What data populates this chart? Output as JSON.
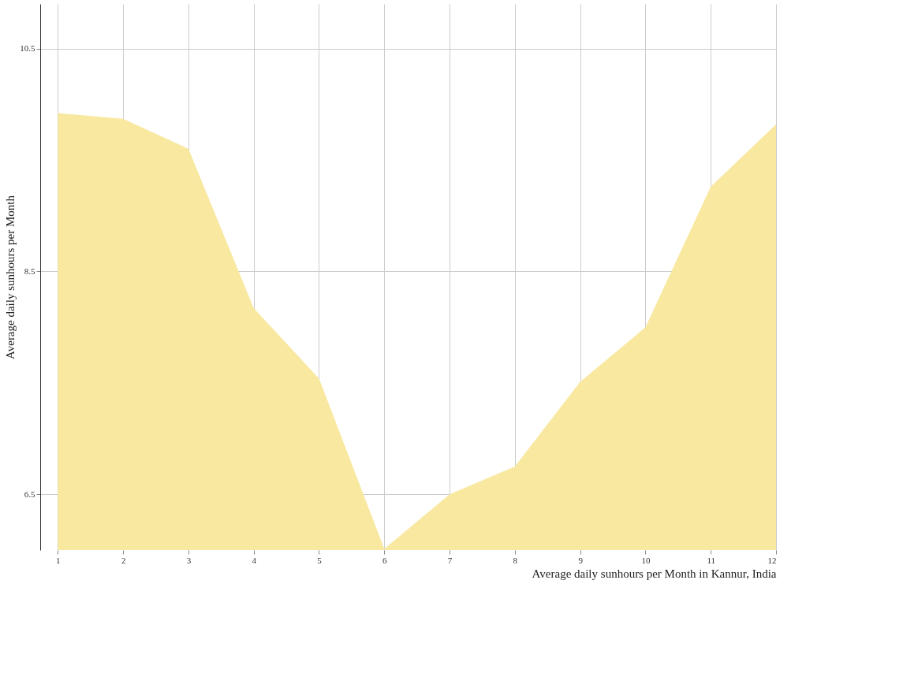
{
  "chart_data": {
    "type": "area",
    "xlabel": "Average daily sunhours per Month in Kannur, India",
    "ylabel": "Average daily sunhours per Month",
    "x": [
      1,
      2,
      3,
      4,
      5,
      6,
      7,
      8,
      9,
      10,
      11,
      12
    ],
    "series": [
      {
        "color": "#f8e8a0",
        "values": [
          9.92,
          9.87,
          9.6,
          8.17,
          7.54,
          6.01,
          6.5,
          6.75,
          7.51,
          8.0,
          9.26,
          9.82
        ]
      }
    ],
    "xlim": [
      0.73,
      12
    ],
    "xticks": [
      1,
      2,
      3,
      4,
      5,
      6,
      7,
      8,
      9,
      10,
      11,
      12
    ],
    "ylim": [
      6.0,
      10.9
    ],
    "yticks": [
      6.5,
      8.5,
      10.5
    ],
    "grid": true
  }
}
